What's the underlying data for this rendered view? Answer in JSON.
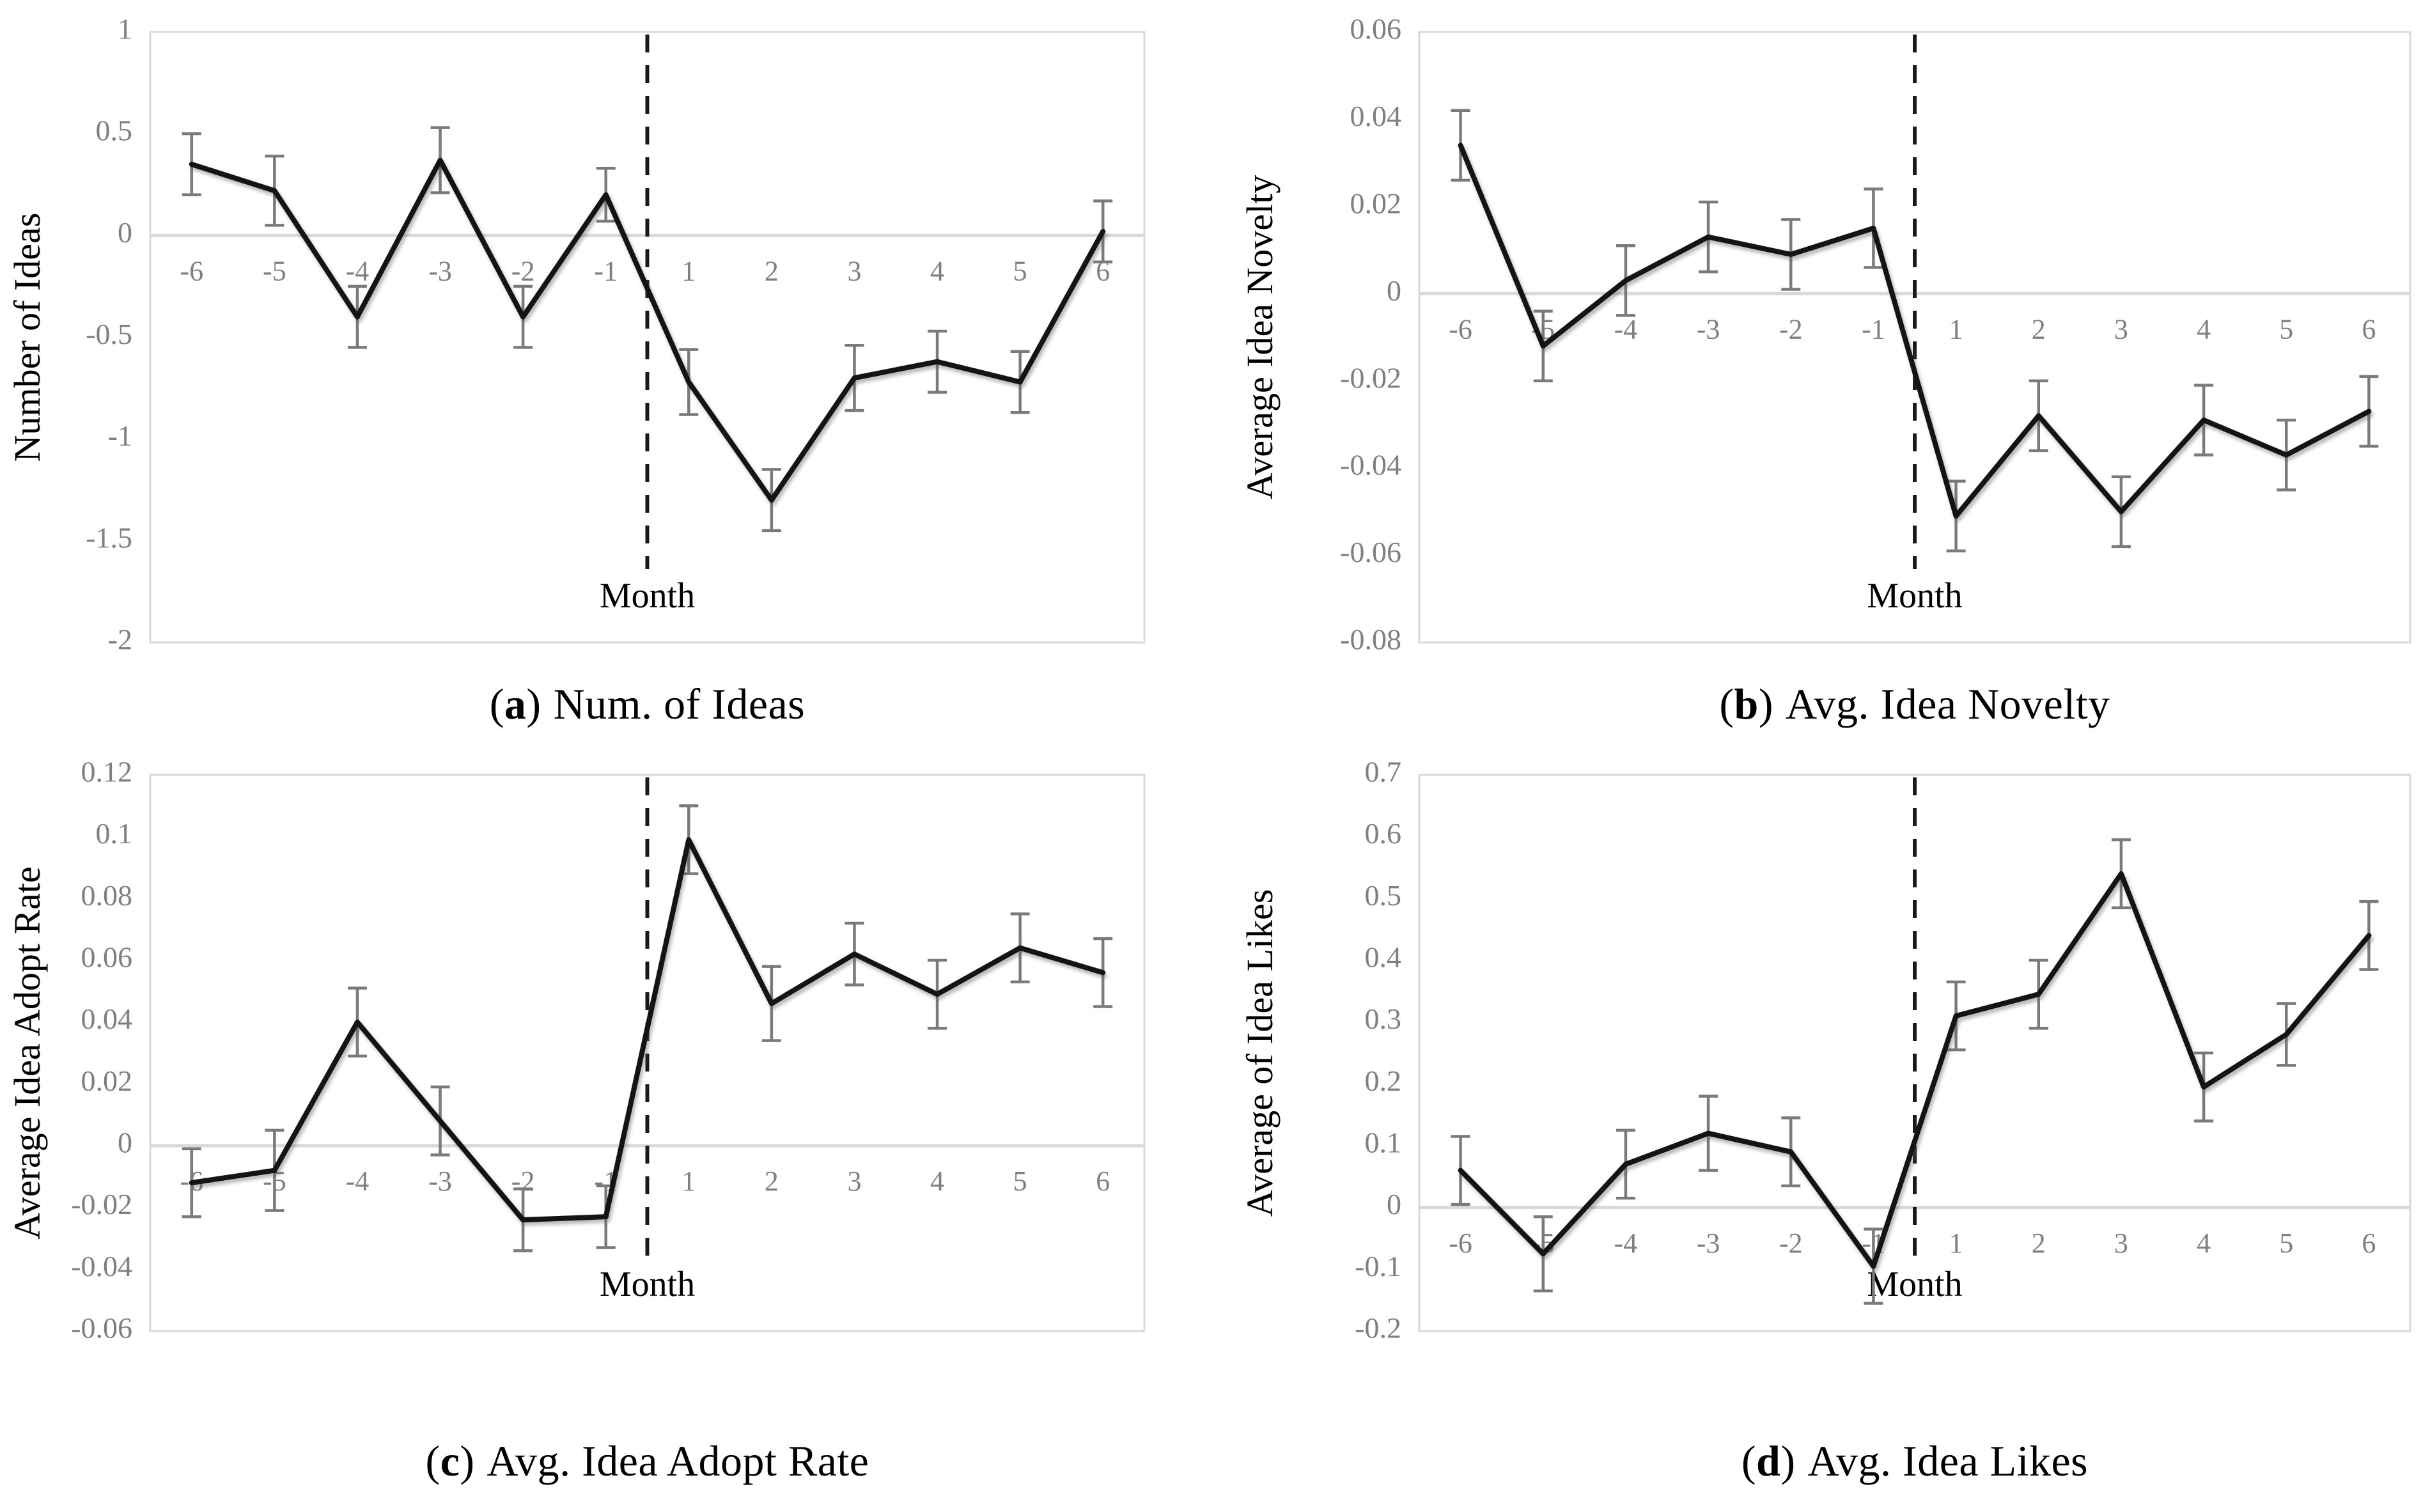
{
  "figure": {
    "background": "#ffffff",
    "layout": "2x2 grid of line charts with error bars"
  },
  "colors": {
    "line": "#141414",
    "error_bar": "#7a7a7a",
    "grid": "#d9d9d9",
    "border": "#d9d9d9",
    "tick_label": "#7f7f7f",
    "axis_title": "#000000",
    "divider": "#1a1a1a"
  },
  "chart_data": [
    {
      "type": "line",
      "caption": {
        "open": "(",
        "letter": "a",
        "close": ")",
        "text": "Num. of Ideas"
      },
      "ylabel": "Number of Ideas",
      "xlabel": "Month",
      "ylim": [
        -2,
        1
      ],
      "grid": "zero-line-only",
      "legend": "none",
      "divider_x": 0,
      "yticks": [
        {
          "v": 1,
          "label": "1"
        },
        {
          "v": 0.5,
          "label": "0.5"
        },
        {
          "v": 0,
          "label": "0"
        },
        {
          "v": -0.5,
          "label": "-0.5"
        },
        {
          "v": -1,
          "label": "-1"
        },
        {
          "v": -1.5,
          "label": "-1.5"
        },
        {
          "v": -2,
          "label": "-2"
        }
      ],
      "categories": [
        "-6",
        "-5",
        "-4",
        "-3",
        "-2",
        "-1",
        "1",
        "2",
        "3",
        "4",
        "5",
        "6"
      ],
      "values": [
        0.35,
        0.22,
        -0.4,
        0.37,
        -0.4,
        0.2,
        -0.72,
        -1.3,
        -0.7,
        -0.62,
        -0.72,
        0.02
      ],
      "errors": [
        0.15,
        0.17,
        0.15,
        0.16,
        0.15,
        0.13,
        0.16,
        0.15,
        0.16,
        0.15,
        0.15,
        0.15
      ]
    },
    {
      "type": "line",
      "caption": {
        "open": "(",
        "letter": "b",
        "close": ")",
        "text": "Avg. Idea Novelty"
      },
      "ylabel": "Average Idea Novelty",
      "xlabel": "Month",
      "ylim": [
        -0.08,
        0.06
      ],
      "grid": "zero-line-only",
      "legend": "none",
      "divider_x": 0,
      "yticks": [
        {
          "v": 0.06,
          "label": "0.06"
        },
        {
          "v": 0.04,
          "label": "0.04"
        },
        {
          "v": 0.02,
          "label": "0.02"
        },
        {
          "v": 0,
          "label": "0"
        },
        {
          "v": -0.02,
          "label": "-0.02"
        },
        {
          "v": -0.04,
          "label": "-0.04"
        },
        {
          "v": -0.06,
          "label": "-0.06"
        },
        {
          "v": -0.08,
          "label": "-0.08"
        }
      ],
      "categories": [
        "-6",
        "-5",
        "-4",
        "-3",
        "-2",
        "-1",
        "1",
        "2",
        "3",
        "4",
        "5",
        "6"
      ],
      "values": [
        0.034,
        -0.012,
        0.003,
        0.013,
        0.009,
        0.015,
        -0.051,
        -0.028,
        -0.05,
        -0.029,
        -0.037,
        -0.027
      ],
      "errors": [
        0.008,
        0.008,
        0.008,
        0.008,
        0.008,
        0.009,
        0.008,
        0.008,
        0.008,
        0.008,
        0.008,
        0.008
      ]
    },
    {
      "type": "line",
      "caption": {
        "open": "(",
        "letter": "c",
        "close": ")",
        "text": "Avg. Idea Adopt Rate"
      },
      "ylabel": "Average Idea Adopt Rate",
      "xlabel": "Month",
      "ylim": [
        -0.06,
        0.12
      ],
      "grid": "zero-line-only",
      "legend": "none",
      "divider_x": 0,
      "yticks": [
        {
          "v": 0.12,
          "label": "0.12"
        },
        {
          "v": 0.1,
          "label": "0.1"
        },
        {
          "v": 0.08,
          "label": "0.08"
        },
        {
          "v": 0.06,
          "label": "0.06"
        },
        {
          "v": 0.04,
          "label": "0.04"
        },
        {
          "v": 0.02,
          "label": "0.02"
        },
        {
          "v": 0,
          "label": "0"
        },
        {
          "v": -0.02,
          "label": "-0.02"
        },
        {
          "v": -0.04,
          "label": "-0.04"
        },
        {
          "v": -0.06,
          "label": "-0.06"
        }
      ],
      "categories": [
        "-6",
        "-5",
        "-4",
        "-3",
        "-2",
        "-1",
        "1",
        "2",
        "3",
        "4",
        "5",
        "6"
      ],
      "values": [
        -0.012,
        -0.008,
        0.04,
        0.008,
        -0.024,
        -0.023,
        0.099,
        0.046,
        0.062,
        0.049,
        0.064,
        0.056
      ],
      "errors": [
        0.011,
        0.013,
        0.011,
        0.011,
        0.01,
        0.01,
        0.011,
        0.012,
        0.01,
        0.011,
        0.011,
        0.011
      ]
    },
    {
      "type": "line",
      "caption": {
        "open": "(",
        "letter": "d",
        "close": ")",
        "text": "Avg. Idea Likes"
      },
      "ylabel": "Average of Idea Likes",
      "xlabel": "Month",
      "ylim": [
        -0.2,
        0.7
      ],
      "grid": "zero-line-only",
      "legend": "none",
      "divider_x": 0,
      "yticks": [
        {
          "v": 0.7,
          "label": "0.7"
        },
        {
          "v": 0.6,
          "label": "0.6"
        },
        {
          "v": 0.5,
          "label": "0.5"
        },
        {
          "v": 0.4,
          "label": "0.4"
        },
        {
          "v": 0.3,
          "label": "0.3"
        },
        {
          "v": 0.2,
          "label": "0.2"
        },
        {
          "v": 0.1,
          "label": "0.1"
        },
        {
          "v": 0,
          "label": "0"
        },
        {
          "v": -0.1,
          "label": "-0.1"
        },
        {
          "v": -0.2,
          "label": "-0.2"
        }
      ],
      "categories": [
        "-6",
        "-5",
        "-4",
        "-3",
        "-2",
        "-1",
        "1",
        "2",
        "3",
        "4",
        "5",
        "6"
      ],
      "values": [
        0.06,
        -0.075,
        0.07,
        0.12,
        0.09,
        -0.095,
        0.31,
        0.345,
        0.54,
        0.195,
        0.28,
        0.44
      ],
      "errors": [
        0.055,
        0.06,
        0.055,
        0.06,
        0.055,
        0.06,
        0.055,
        0.055,
        0.055,
        0.055,
        0.05,
        0.055
      ]
    }
  ]
}
